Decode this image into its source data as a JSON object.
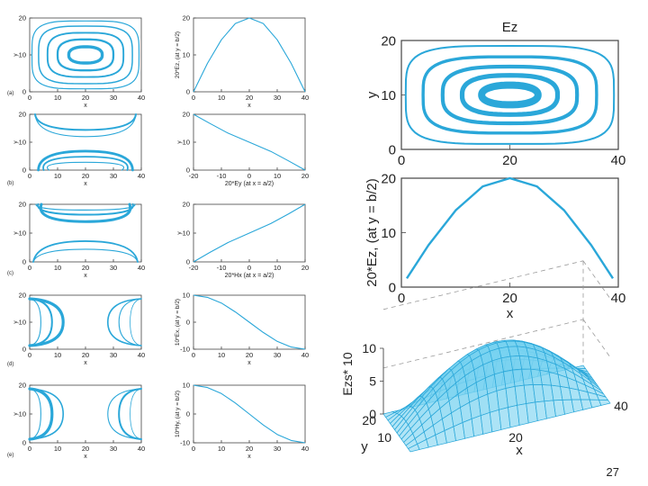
{
  "page_number": "27",
  "colors": {
    "curve": "#2aa7d9",
    "axis": "#333333",
    "frame": "#444444",
    "text": "#222222",
    "dashed": "#9a9a9a"
  },
  "chart_data": [
    {
      "id": "a-contour",
      "type": "contour",
      "panel_tag": "(a)",
      "xlabel": "x",
      "ylabel": "y",
      "xlim": [
        0,
        40
      ],
      "ylim": [
        0,
        20
      ],
      "xticks": [
        "0",
        "10",
        "20",
        "30",
        "40"
      ],
      "yticks": [
        "0",
        "10",
        "20"
      ],
      "field": "Ez, mode pattern (a)"
    },
    {
      "id": "a-line",
      "type": "line",
      "xlabel": "x",
      "ylabel": "20*Ez, (at y = b/2)",
      "xlim": [
        0,
        40
      ],
      "ylim": [
        0,
        20
      ],
      "xticks": [
        "0",
        "10",
        "20",
        "30",
        "40"
      ],
      "yticks": [
        "0",
        "10",
        "20"
      ],
      "x": [
        0,
        5,
        10,
        15,
        20,
        25,
        30,
        35,
        40
      ],
      "y": [
        0,
        7.7,
        14.1,
        18.5,
        20,
        18.5,
        14.1,
        7.7,
        0
      ]
    },
    {
      "id": "b-contour",
      "type": "contour",
      "panel_tag": "(b)",
      "xlabel": "x",
      "ylabel": "y",
      "xlim": [
        0,
        40
      ],
      "ylim": [
        0,
        20
      ],
      "xticks": [
        "0",
        "10",
        "20",
        "30",
        "40"
      ],
      "yticks": [
        "0",
        "10",
        "20"
      ],
      "field": "mode pattern (b)"
    },
    {
      "id": "b-line",
      "type": "line",
      "xlabel": "20*Ey (at x = a/2)",
      "ylabel": "y",
      "xlim": [
        -20,
        20
      ],
      "ylim": [
        0,
        20
      ],
      "xticks": [
        "-20",
        "-10",
        "0",
        "10",
        "20"
      ],
      "yticks": [
        "0",
        "10",
        "20"
      ],
      "x": [
        -20,
        -14.1,
        -7.7,
        0,
        7.7,
        14.1,
        20
      ],
      "y": [
        20,
        16.7,
        13.3,
        10,
        6.7,
        3.3,
        0
      ]
    },
    {
      "id": "c-contour",
      "type": "contour",
      "panel_tag": "(c)",
      "xlabel": "x",
      "ylabel": "y",
      "xlim": [
        0,
        40
      ],
      "ylim": [
        0,
        20
      ],
      "xticks": [
        "0",
        "10",
        "20",
        "30",
        "40"
      ],
      "yticks": [
        "0",
        "10",
        "20"
      ],
      "field": "mode pattern (c)"
    },
    {
      "id": "c-line",
      "type": "line",
      "xlabel": "20*Hx (at x = a/2)",
      "ylabel": "y",
      "xlim": [
        -20,
        20
      ],
      "ylim": [
        0,
        20
      ],
      "xticks": [
        "-20",
        "-10",
        "0",
        "10",
        "20"
      ],
      "yticks": [
        "0",
        "10",
        "20"
      ],
      "x": [
        -20,
        -14.1,
        -7.7,
        0,
        7.7,
        14.1,
        20
      ],
      "y": [
        0,
        3.3,
        6.7,
        10,
        13.3,
        16.7,
        20
      ]
    },
    {
      "id": "d-contour",
      "type": "contour",
      "panel_tag": "(d)",
      "xlabel": "x",
      "ylabel": "y",
      "xlim": [
        0,
        40
      ],
      "ylim": [
        0,
        20
      ],
      "xticks": [
        "0",
        "10",
        "20",
        "30",
        "40"
      ],
      "yticks": [
        "0",
        "10",
        "20"
      ],
      "field": "mode pattern (d)"
    },
    {
      "id": "d-line",
      "type": "line",
      "xlabel": "x",
      "ylabel": "10*Ex, (at y = b/2)",
      "xlim": [
        0,
        40
      ],
      "ylim": [
        -10,
        10
      ],
      "xticks": [
        "0",
        "10",
        "20",
        "30",
        "40"
      ],
      "yticks": [
        "-10",
        "0",
        "10"
      ],
      "x": [
        0,
        5,
        10,
        15,
        20,
        25,
        30,
        35,
        40
      ],
      "y": [
        10,
        9.2,
        7.1,
        3.8,
        0,
        -3.8,
        -7.1,
        -9.2,
        -10
      ]
    },
    {
      "id": "e-contour",
      "type": "contour",
      "panel_tag": "(e)",
      "xlabel": "x",
      "ylabel": "y",
      "xlim": [
        0,
        40
      ],
      "ylim": [
        0,
        20
      ],
      "xticks": [
        "0",
        "10",
        "20",
        "30",
        "40"
      ],
      "yticks": [
        "0",
        "10",
        "20"
      ],
      "field": "mode pattern (e)"
    },
    {
      "id": "e-line",
      "type": "line",
      "xlabel": "x",
      "ylabel": "10*Hy, (at y = b/2)",
      "xlim": [
        0,
        40
      ],
      "ylim": [
        -10,
        10
      ],
      "xticks": [
        "0",
        "10",
        "20",
        "30",
        "40"
      ],
      "yticks": [
        "-10",
        "0",
        "10"
      ],
      "x": [
        0,
        5,
        10,
        15,
        20,
        25,
        30,
        35,
        40
      ],
      "y": [
        10,
        9.2,
        7.1,
        3.8,
        0,
        -3.8,
        -7.1,
        -9.2,
        -10
      ]
    },
    {
      "id": "big-contour",
      "type": "contour",
      "title": "Ez",
      "xlabel": "",
      "ylabel": "y",
      "xlim": [
        0,
        40
      ],
      "ylim": [
        0,
        20
      ],
      "xticks": [
        "0",
        "20",
        "40"
      ],
      "yticks": [
        "0",
        "10",
        "20"
      ],
      "field": "Ez"
    },
    {
      "id": "big-line",
      "type": "line",
      "xlabel": "x",
      "ylabel": "20*Ez, (at y = b/2)",
      "xlim": [
        0,
        40
      ],
      "ylim": [
        0,
        20
      ],
      "xticks": [
        "0",
        "20",
        "40"
      ],
      "yticks": [
        "0",
        "10",
        "20"
      ],
      "x": [
        1,
        5,
        10,
        15,
        20,
        25,
        30,
        35,
        39
      ],
      "y": [
        1.6,
        7.7,
        14.1,
        18.5,
        20,
        18.5,
        14.1,
        7.7,
        1.6
      ]
    },
    {
      "id": "surface",
      "type": "surface",
      "zlabel": "Ezs* 10",
      "xlabel": "x",
      "ylabel": "y",
      "zticks": [
        "0",
        "5",
        "10"
      ],
      "xticks": [
        "20",
        "40"
      ],
      "yticks": [
        "10",
        "20"
      ],
      "function": "z = 10*sin(pi*x/40)*sin(pi*y/20)",
      "xlim": [
        0,
        40
      ],
      "ylim": [
        0,
        20
      ],
      "zlim": [
        0,
        10
      ]
    }
  ]
}
